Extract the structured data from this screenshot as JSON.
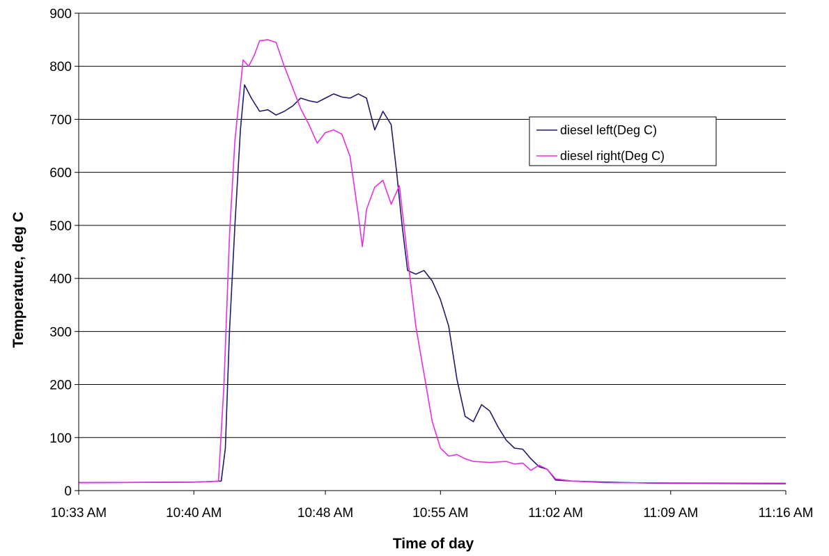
{
  "chart_data": {
    "type": "line",
    "xlabel": "Time of day",
    "ylabel": "Temperature, deg C",
    "x_ticks": [
      "10:33 AM",
      "10:40 AM",
      "10:48 AM",
      "10:55 AM",
      "11:02 AM",
      "11:09 AM",
      "11:16 AM"
    ],
    "y_ticks": [
      "0",
      "100",
      "200",
      "300",
      "400",
      "500",
      "600",
      "700",
      "800",
      "900"
    ],
    "xlim": [
      "10:33 AM",
      "11:16 AM"
    ],
    "ylim": [
      0,
      900
    ],
    "grid": "horizontal",
    "legend_position": "right",
    "series": [
      {
        "name": "diesel left(Deg C)",
        "color": "#1f1a6b",
        "points": [
          [
            "10:33:00",
            15
          ],
          [
            "10:40:00",
            16
          ],
          [
            "10:41:00",
            17
          ],
          [
            "10:41:40",
            18
          ],
          [
            "10:41:55",
            80
          ],
          [
            "10:42:10",
            300
          ],
          [
            "10:42:30",
            500
          ],
          [
            "10:42:50",
            680
          ],
          [
            "10:43:05",
            765
          ],
          [
            "10:43:30",
            740
          ],
          [
            "10:44:00",
            715
          ],
          [
            "10:44:30",
            718
          ],
          [
            "10:45:00",
            708
          ],
          [
            "10:45:30",
            715
          ],
          [
            "10:46:00",
            725
          ],
          [
            "10:46:30",
            740
          ],
          [
            "10:47:00",
            735
          ],
          [
            "10:47:30",
            732
          ],
          [
            "10:48:00",
            740
          ],
          [
            "10:48:30",
            748
          ],
          [
            "10:49:00",
            742
          ],
          [
            "10:49:30",
            740
          ],
          [
            "10:50:00",
            748
          ],
          [
            "10:50:30",
            740
          ],
          [
            "10:51:00",
            680
          ],
          [
            "10:51:30",
            715
          ],
          [
            "10:52:00",
            690
          ],
          [
            "10:52:20",
            600
          ],
          [
            "10:52:40",
            500
          ],
          [
            "10:53:00",
            415
          ],
          [
            "10:53:30",
            408
          ],
          [
            "10:54:00",
            415
          ],
          [
            "10:54:30",
            395
          ],
          [
            "10:55:00",
            360
          ],
          [
            "10:55:30",
            310
          ],
          [
            "10:56:00",
            210
          ],
          [
            "10:56:30",
            140
          ],
          [
            "10:57:00",
            130
          ],
          [
            "10:57:30",
            162
          ],
          [
            "10:58:00",
            150
          ],
          [
            "10:58:30",
            120
          ],
          [
            "10:59:00",
            95
          ],
          [
            "10:59:30",
            80
          ],
          [
            "11:00:00",
            78
          ],
          [
            "11:00:30",
            60
          ],
          [
            "11:01:00",
            45
          ],
          [
            "11:01:30",
            40
          ],
          [
            "11:02:00",
            20
          ],
          [
            "11:03:00",
            18
          ],
          [
            "11:05:00",
            16
          ],
          [
            "11:08:00",
            14
          ],
          [
            "11:16:00",
            13
          ]
        ]
      },
      {
        "name": "diesel right(Deg C)",
        "color": "#e62ee6",
        "points": [
          [
            "10:33:00",
            15
          ],
          [
            "10:40:00",
            16
          ],
          [
            "10:41:00",
            17
          ],
          [
            "10:41:30",
            18
          ],
          [
            "10:41:50",
            200
          ],
          [
            "10:42:10",
            480
          ],
          [
            "10:42:30",
            660
          ],
          [
            "10:43:00",
            812
          ],
          [
            "10:43:20",
            800
          ],
          [
            "10:43:40",
            820
          ],
          [
            "10:44:00",
            848
          ],
          [
            "10:44:30",
            850
          ],
          [
            "10:45:00",
            845
          ],
          [
            "10:45:30",
            800
          ],
          [
            "10:46:00",
            760
          ],
          [
            "10:46:30",
            720
          ],
          [
            "10:47:00",
            690
          ],
          [
            "10:47:30",
            655
          ],
          [
            "10:48:00",
            675
          ],
          [
            "10:48:30",
            680
          ],
          [
            "10:49:00",
            672
          ],
          [
            "10:49:30",
            630
          ],
          [
            "10:50:00",
            520
          ],
          [
            "10:50:15",
            460
          ],
          [
            "10:50:30",
            530
          ],
          [
            "10:51:00",
            572
          ],
          [
            "10:51:30",
            585
          ],
          [
            "10:52:00",
            540
          ],
          [
            "10:52:30",
            575
          ],
          [
            "10:53:00",
            440
          ],
          [
            "10:53:30",
            310
          ],
          [
            "10:54:00",
            220
          ],
          [
            "10:54:30",
            130
          ],
          [
            "10:55:00",
            80
          ],
          [
            "10:55:30",
            65
          ],
          [
            "10:56:00",
            68
          ],
          [
            "10:56:30",
            60
          ],
          [
            "10:57:00",
            55
          ],
          [
            "10:58:00",
            53
          ],
          [
            "10:59:00",
            55
          ],
          [
            "10:59:30",
            50
          ],
          [
            "11:00:00",
            52
          ],
          [
            "11:00:30",
            38
          ],
          [
            "11:01:00",
            48
          ],
          [
            "11:01:30",
            40
          ],
          [
            "11:02:00",
            22
          ],
          [
            "11:03:00",
            18
          ],
          [
            "11:05:00",
            15
          ],
          [
            "11:16:00",
            14
          ]
        ]
      }
    ]
  }
}
